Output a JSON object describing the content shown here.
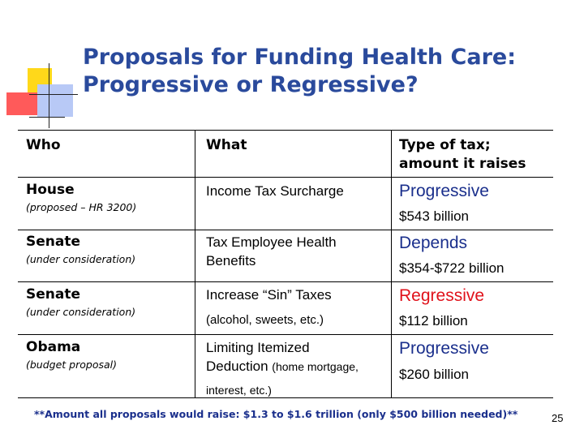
{
  "slide": {
    "title_line1": "Proposals for Funding Health Care:",
    "title_line2": "Progressive or Regressive?",
    "page_number": "25",
    "footer_note": "**Amount all proposals would raise: $1.3 to $1.6 trillion (only $500 billion needed)**"
  },
  "colors": {
    "title": "#2a4a9c",
    "progressive": "#1a2f8c",
    "regressive": "#e0121b",
    "accent_yellow": "#ffd81a",
    "accent_red": "#ff5a5a",
    "accent_blue": "#b8c9f6"
  },
  "table": {
    "headers": {
      "who": "Who",
      "what": "What",
      "type_line1": "Type of tax;",
      "type_line2": "amount it raises"
    },
    "rows": [
      {
        "who": "House",
        "note": "(proposed – HR 3200)",
        "what_line1": "Income Tax Surcharge",
        "what_line2": "",
        "what_paren": "",
        "type": "Progressive",
        "amount": "$543 billion"
      },
      {
        "who": "Senate",
        "note": "(under consideration)",
        "what_line1": "Tax Employee Health",
        "what_line2": "Benefits",
        "what_paren": "",
        "type": "Depends",
        "amount": "$354-$722 billion"
      },
      {
        "who": "Senate",
        "note": "(under consideration)",
        "what_line1": "Increase “Sin” Taxes",
        "what_line2": "",
        "what_paren": "(alcohol, sweets, etc.)",
        "type": "Regressive",
        "amount": "$112 billion"
      },
      {
        "who": "Obama",
        "note": "(budget proposal)",
        "what_line1": "Limiting Itemized",
        "what_line2": "Deduction",
        "what_paren": "(home mortgage,",
        "what_paren2": "interest, etc.)",
        "type": "Progressive",
        "amount": "$260 billion"
      }
    ]
  }
}
